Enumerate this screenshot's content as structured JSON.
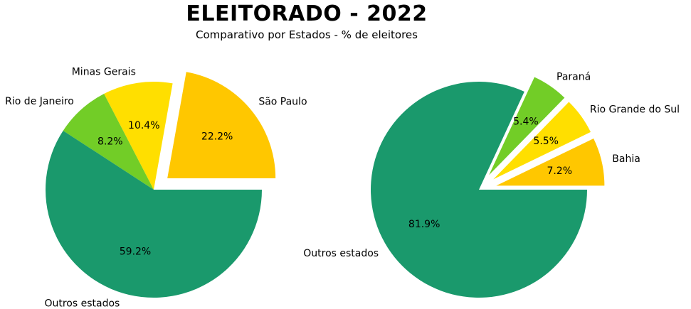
{
  "header": {
    "title": "ELEITORADO - 2022",
    "subtitle": "Comparativo por Estados - % de eleitores"
  },
  "chart_data": [
    {
      "type": "pie",
      "slices": [
        {
          "label": "São Paulo",
          "value": 22.2,
          "value_label": "22.2%",
          "color": "#FFC700",
          "exploded": true
        },
        {
          "label": "Minas Gerais",
          "value": 10.4,
          "value_label": "10.4%",
          "color": "#FFDF00",
          "exploded": false
        },
        {
          "label": "Rio de Janeiro",
          "value": 8.2,
          "value_label": "8.2%",
          "color": "#72CD27",
          "exploded": false
        },
        {
          "label": "Outros estados",
          "value": 59.2,
          "value_label": "59.2%",
          "color": "#1A996C",
          "exploded": false
        }
      ]
    },
    {
      "type": "pie",
      "slices": [
        {
          "label": "Bahia",
          "value": 7.2,
          "value_label": "7.2%",
          "color": "#FFC700",
          "exploded": true
        },
        {
          "label": "Rio Grande do Sul",
          "value": 5.5,
          "value_label": "5.5%",
          "color": "#FFDF00",
          "exploded": true
        },
        {
          "label": "Paraná",
          "value": 5.4,
          "value_label": "5.4%",
          "color": "#72CD27",
          "exploded": true
        },
        {
          "label": "Outros estados",
          "value": 81.9,
          "value_label": "81.9%",
          "color": "#1A996C",
          "exploded": false
        }
      ]
    }
  ]
}
